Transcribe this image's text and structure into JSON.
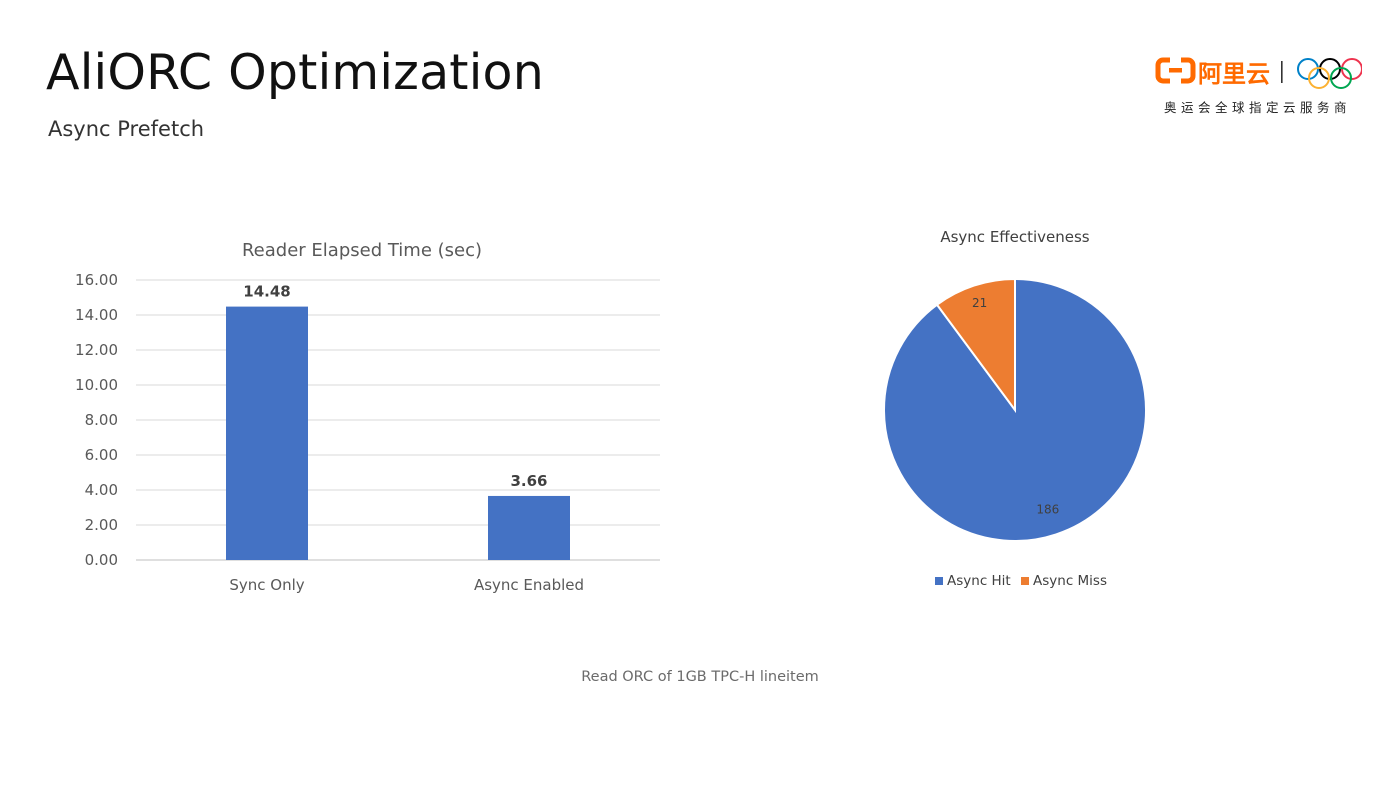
{
  "slide": {
    "title": "AliORC Optimization",
    "subtitle": "Async Prefetch",
    "caption": "Read ORC of 1GB TPC-H lineitem"
  },
  "logo": {
    "brand_text": "阿里云",
    "tagline": "奥运会全球指定云服务商",
    "brand_color": "#ff6a00"
  },
  "chart_data": [
    {
      "type": "bar",
      "title": "Reader Elapsed Time (sec)",
      "categories": [
        "Sync Only",
        "Async Enabled"
      ],
      "values": [
        14.48,
        3.66
      ],
      "data_labels": [
        "14.48",
        "3.66"
      ],
      "ylim": [
        0,
        16
      ],
      "yticks": [
        "0.00",
        "2.00",
        "4.00",
        "6.00",
        "8.00",
        "10.00",
        "12.00",
        "14.00",
        "16.00"
      ],
      "grid": true,
      "color": "#4472c4"
    },
    {
      "type": "pie",
      "title": "Async Effectiveness",
      "labels": [
        "Async Hit",
        "Async Miss"
      ],
      "values": [
        186,
        21
      ],
      "data_labels": [
        "186",
        "21"
      ],
      "colors": [
        "#4472c4",
        "#ed7d31"
      ],
      "legend_position": "bottom"
    }
  ]
}
